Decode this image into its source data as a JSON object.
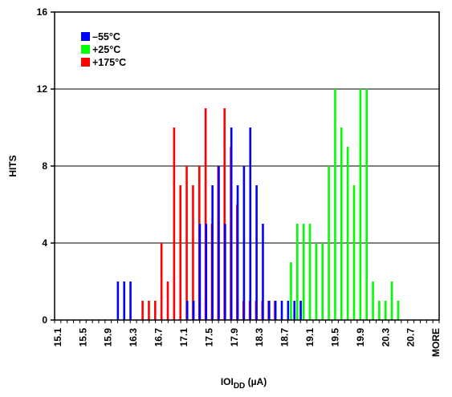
{
  "chart_data": {
    "type": "bar",
    "title": "",
    "xlabel_main": "IOI",
    "xlabel_sub": "DD",
    "xlabel_unit": " (µA)",
    "ylabel": "HITS",
    "ylim": [
      0,
      16
    ],
    "yticks": [
      0,
      4,
      8,
      12,
      16
    ],
    "grid": "horizontal",
    "legend_position": "top-left",
    "x_tick_labels": [
      "15.1",
      "15.5",
      "15.9",
      "16.3",
      "16.7",
      "17.1",
      "17.5",
      "17.9",
      "18.3",
      "18.7",
      "19.1",
      "19.5",
      "19.9",
      "20.3",
      "20.7",
      "MORE"
    ],
    "categories": [
      "15.1",
      "15.2",
      "15.3",
      "15.4",
      "15.5",
      "15.6",
      "15.7",
      "15.8",
      "15.9",
      "16.0",
      "16.1",
      "16.2",
      "16.3",
      "16.4",
      "16.5",
      "16.6",
      "16.7",
      "16.8",
      "16.9",
      "17.0",
      "17.1",
      "17.2",
      "17.3",
      "17.4",
      "17.5",
      "17.6",
      "17.7",
      "17.8",
      "17.9",
      "18.0",
      "18.1",
      "18.2",
      "18.3",
      "18.4",
      "18.5",
      "18.6",
      "18.7",
      "18.8",
      "18.9",
      "19.0",
      "19.1",
      "19.2",
      "19.3",
      "19.4",
      "19.5",
      "19.6",
      "19.7",
      "19.8",
      "19.9",
      "20.0",
      "20.1",
      "20.2",
      "20.3",
      "20.4",
      "20.5",
      "20.6",
      "20.7",
      "20.8",
      "20.9",
      "21.0",
      "MORE"
    ],
    "series": [
      {
        "name": "–55°C",
        "color": "#0000ff",
        "values": [
          0,
          0,
          0,
          0,
          0,
          0,
          0,
          0,
          0,
          0,
          2,
          2,
          2,
          0,
          0,
          0,
          0,
          0,
          0,
          0,
          0,
          1,
          1,
          5,
          5,
          7,
          8,
          5,
          10,
          7,
          8,
          10,
          7,
          5,
          1,
          1,
          1,
          1,
          1,
          1,
          0,
          0,
          0,
          0,
          0,
          0,
          0,
          0,
          0,
          0,
          0,
          0,
          0,
          0,
          0,
          0,
          0,
          0,
          0,
          0,
          0
        ]
      },
      {
        "name": "+25°C",
        "color": "#00ff00",
        "values": [
          0,
          0,
          0,
          0,
          0,
          0,
          0,
          0,
          0,
          0,
          0,
          0,
          0,
          0,
          0,
          0,
          0,
          0,
          0,
          0,
          0,
          0,
          0,
          0,
          0,
          0,
          0,
          0,
          0,
          0,
          0,
          0,
          0,
          0,
          0,
          0,
          0,
          3,
          5,
          5,
          5,
          4,
          4,
          8,
          12,
          10,
          9,
          7,
          12,
          12,
          2,
          1,
          1,
          2,
          1,
          0,
          0,
          0,
          0,
          0,
          0
        ]
      },
      {
        "name": "+175°C",
        "color": "#ff0000",
        "values": [
          0,
          0,
          0,
          0,
          0,
          0,
          0,
          0,
          0,
          0,
          0,
          0,
          0,
          1,
          1,
          1,
          4,
          2,
          10,
          7,
          8,
          7,
          8,
          11,
          5,
          8,
          11,
          9,
          6,
          1,
          1,
          1,
          1,
          1,
          1,
          0,
          0,
          0,
          0,
          0,
          0,
          0,
          0,
          0,
          0,
          0,
          0,
          0,
          0,
          0,
          0,
          0,
          0,
          0,
          0,
          0,
          0,
          0,
          0,
          0,
          0
        ]
      }
    ]
  }
}
